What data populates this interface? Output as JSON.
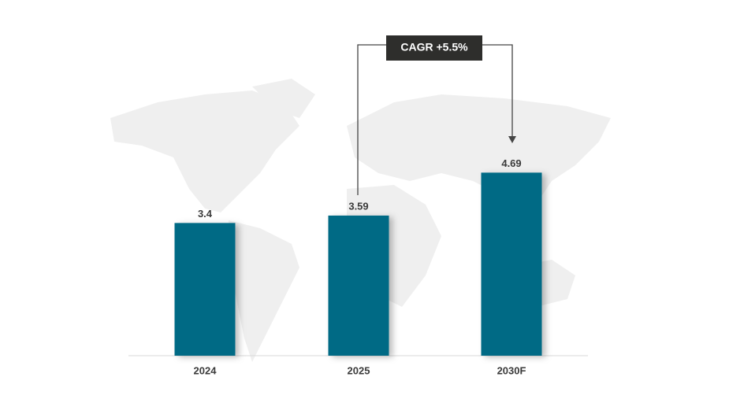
{
  "chart_data": {
    "type": "bar",
    "categories": [
      "2024",
      "2025",
      "2030F"
    ],
    "values": [
      3.4,
      3.59,
      4.69
    ],
    "color": "#036b85",
    "annotation": "CAGR +5.5%"
  }
}
